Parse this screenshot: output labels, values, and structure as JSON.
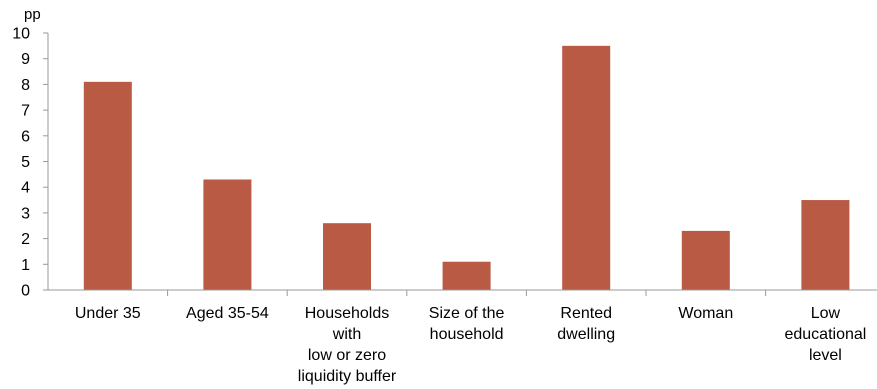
{
  "chart_data": {
    "type": "bar",
    "ylabel": "pp",
    "ylim": [
      0,
      10
    ],
    "yticks": [
      "0",
      "1",
      "2",
      "3",
      "4",
      "5",
      "6",
      "7",
      "8",
      "9",
      "10"
    ],
    "categories": [
      [
        "Under 35"
      ],
      [
        "Aged 35-54"
      ],
      [
        "Households",
        "with",
        "low or zero",
        "liquidity buffer"
      ],
      [
        "Size of the",
        "household"
      ],
      [
        "Rented",
        "dwelling"
      ],
      [
        "Woman"
      ],
      [
        "Low",
        "educational",
        "level"
      ]
    ],
    "values": [
      8.1,
      4.3,
      2.6,
      1.1,
      9.5,
      2.3,
      3.5
    ],
    "grid": false,
    "bar_color": "#b95a45",
    "axis_color": "#999999"
  }
}
